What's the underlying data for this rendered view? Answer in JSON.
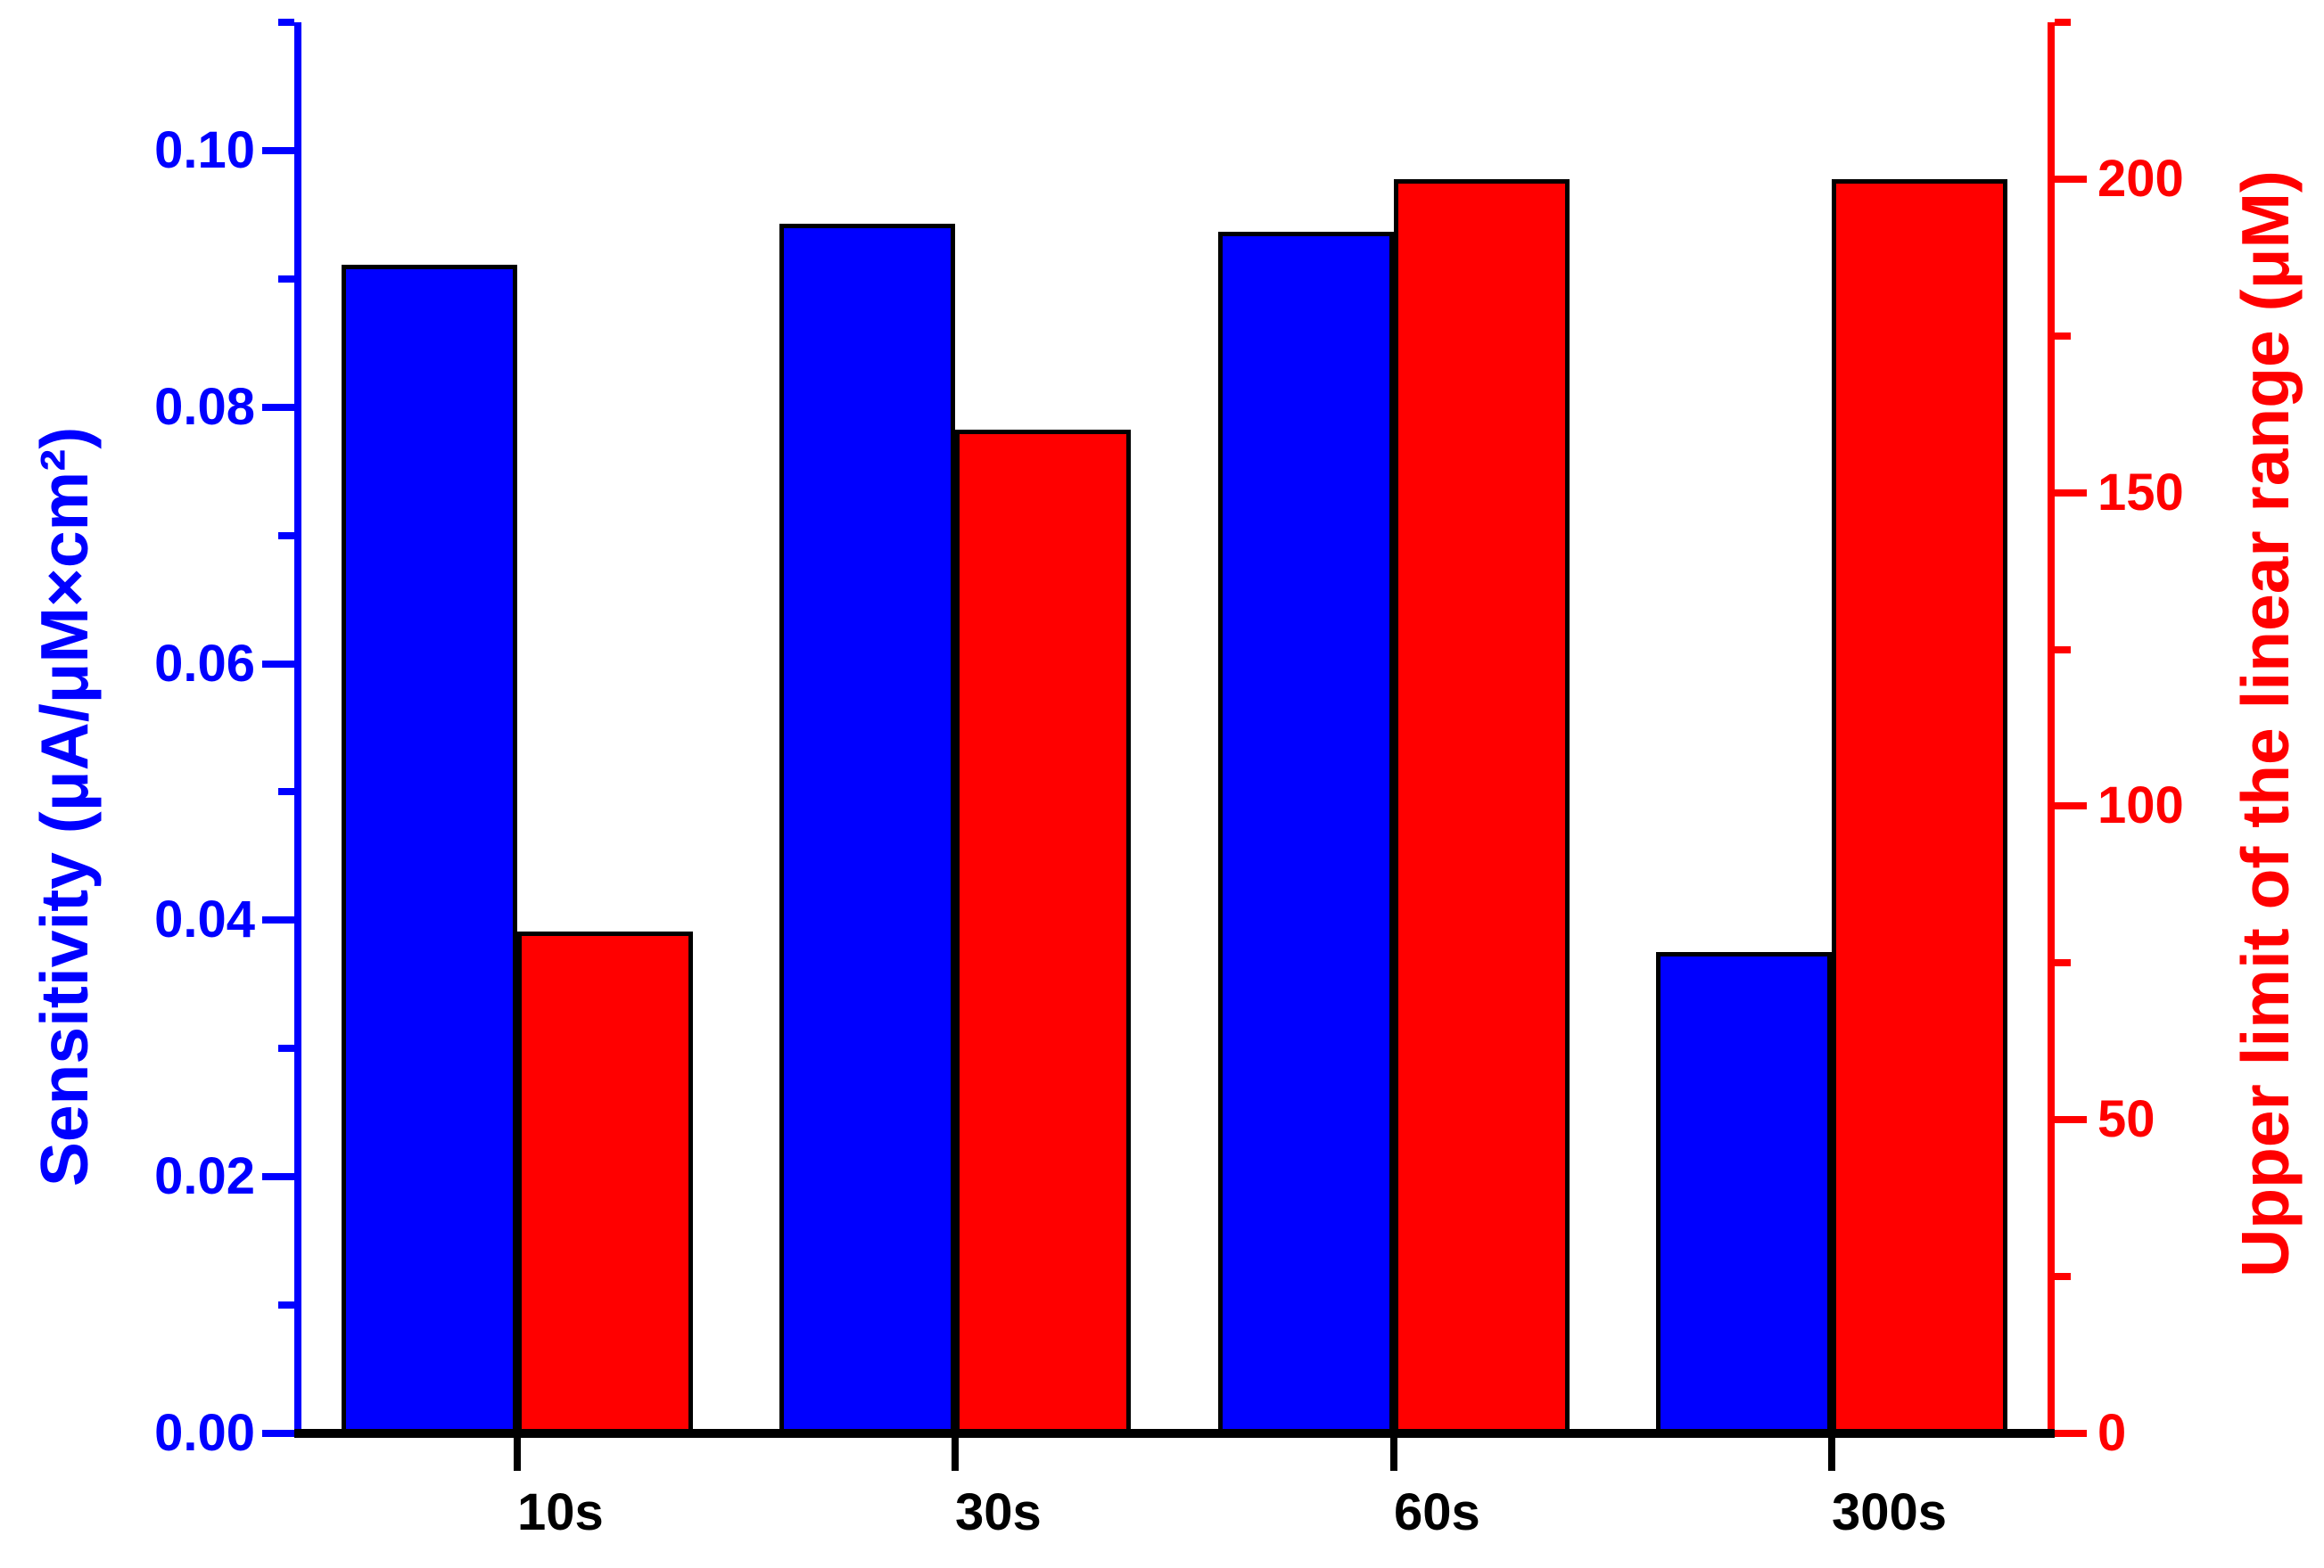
{
  "chart_data": {
    "type": "bar",
    "categories": [
      "10s",
      "30s",
      "60s",
      "300s"
    ],
    "series": [
      {
        "name": "Sensitivity",
        "axis": "left",
        "color": "#0000FF",
        "values": [
          0.0911,
          0.0943,
          0.0937,
          0.0375
        ]
      },
      {
        "name": "Upper limit of the linear range",
        "axis": "right",
        "color": "#FF0000",
        "values": [
          80,
          160,
          200,
          200
        ]
      }
    ],
    "title": "",
    "xlabel": "",
    "ylabel_left": "Sensitivity (μA/μM×cm²)",
    "ylabel_right": "Upper limit of the linear range (μM)",
    "left_axis": {
      "min": 0,
      "max": 0.11,
      "major_ticks": [
        0.0,
        0.02,
        0.04,
        0.06,
        0.08,
        0.1
      ],
      "major_tick_labels": [
        "0.00",
        "0.02",
        "0.04",
        "0.06",
        "0.08",
        "0.10"
      ],
      "minor_step": 0.01,
      "color": "#0000FF"
    },
    "right_axis": {
      "min": 0,
      "max": 225,
      "major_ticks": [
        0,
        50,
        100,
        150,
        200
      ],
      "major_tick_labels": [
        "0",
        "50",
        "100",
        "150",
        "200"
      ],
      "minor_step": 25,
      "color": "#FF0000"
    },
    "bar_outline_color": "#000000",
    "grid": false,
    "legend_position": "none"
  }
}
